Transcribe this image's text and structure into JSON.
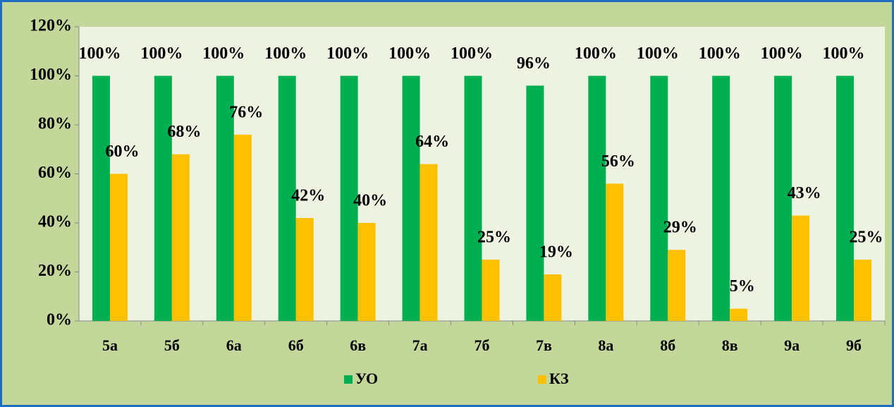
{
  "chart_data": {
    "type": "bar",
    "categories": [
      "5а",
      "5б",
      "6а",
      "6б",
      "6в",
      "7а",
      "7б",
      "7в",
      "8а",
      "8б",
      "8в",
      "9а",
      "9б"
    ],
    "series": [
      {
        "name": "УО",
        "color": "#00b050",
        "values": [
          100,
          100,
          100,
          100,
          100,
          100,
          100,
          96,
          100,
          100,
          100,
          100,
          100
        ],
        "value_labels": [
          "100%",
          "100%",
          "100%",
          "100%",
          "100%",
          "100%",
          "100%",
          "96%",
          "100%",
          "100%",
          "100%",
          "100%",
          "100%"
        ]
      },
      {
        "name": "КЗ",
        "color": "#ffc000",
        "values": [
          60,
          68,
          76,
          42,
          40,
          64,
          25,
          19,
          56,
          29,
          5,
          43,
          25
        ],
        "value_labels": [
          "60%",
          "68%",
          "76%",
          "42%",
          "40%",
          "64%",
          "25%",
          "19%",
          "56%",
          "29%",
          "5%",
          "43%",
          "25%"
        ]
      }
    ],
    "ylim": [
      0,
      120
    ],
    "yticks": [
      {
        "value": 0,
        "label": "0%"
      },
      {
        "value": 20,
        "label": "20%"
      },
      {
        "value": 40,
        "label": "40%"
      },
      {
        "value": 60,
        "label": "60%"
      },
      {
        "value": 80,
        "label": "80%"
      },
      {
        "value": 100,
        "label": "100%"
      },
      {
        "value": 120,
        "label": "120%"
      }
    ],
    "legend": "bottom"
  }
}
